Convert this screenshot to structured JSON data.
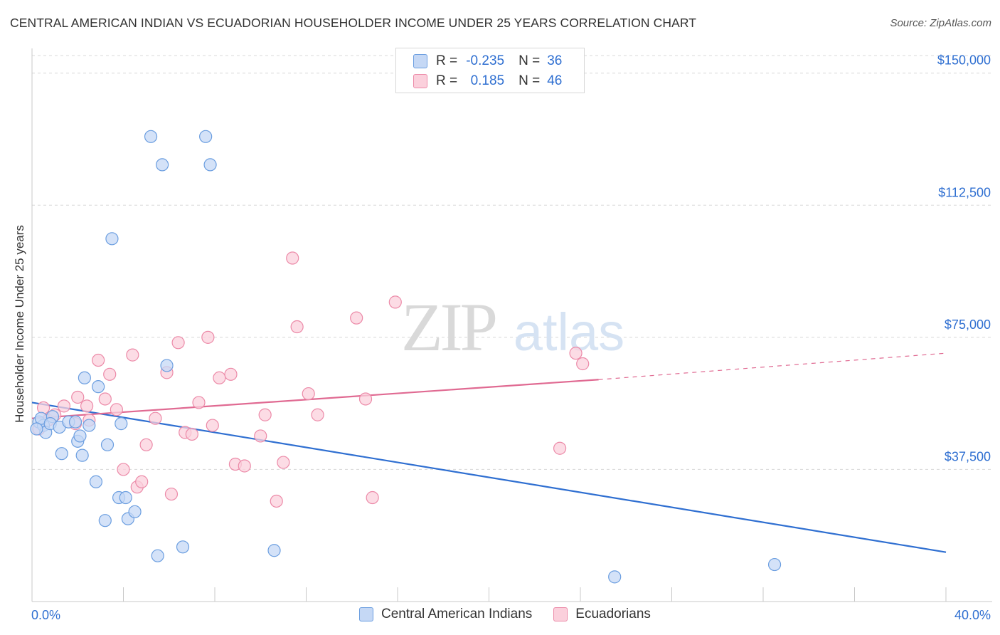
{
  "title": "CENTRAL AMERICAN INDIAN VS ECUADORIAN HOUSEHOLDER INCOME UNDER 25 YEARS CORRELATION CHART",
  "source": "Source: ZipAtlas.com",
  "watermark": {
    "zip": "ZIP",
    "atlas": "atlas"
  },
  "legend_top": {
    "rows": [
      {
        "r_label": "R =",
        "r_value": "-0.235",
        "n_label": "N =",
        "n_value": "36"
      },
      {
        "r_label": "R =",
        "r_value": "0.185",
        "n_label": "N =",
        "n_value": "46"
      }
    ]
  },
  "legend_bottom": [
    "Central American Indians",
    "Ecuadorians"
  ],
  "colors": {
    "blue_fill": "#c5d8f5",
    "blue_stroke": "#6b9ee0",
    "blue_line": "#2f6fd1",
    "pink_fill": "#fbd0dc",
    "pink_stroke": "#ec8aa8",
    "pink_line": "#e06a92",
    "grid": "#d8d8d8",
    "tick_text": "#2f6fd1"
  },
  "chart_data": {
    "type": "scatter",
    "title": "CENTRAL AMERICAN INDIAN VS ECUADORIAN HOUSEHOLDER INCOME UNDER 25 YEARS CORRELATION CHART",
    "xlabel": "",
    "ylabel": "Householder Income Under 25 years",
    "xlim": [
      0,
      40
    ],
    "ylim": [
      0,
      155000
    ],
    "x_tick_labels": [
      "0.0%",
      "40.0%"
    ],
    "y_ticks": [
      37500,
      75000,
      112500,
      150000
    ],
    "y_tick_labels": [
      "$37,500",
      "$75,000",
      "$112,500",
      "$150,000"
    ],
    "grid": true,
    "series": [
      {
        "name": "Central American Indians",
        "points": [
          [
            0.3,
            51000
          ],
          [
            0.5,
            50000
          ],
          [
            0.4,
            52000
          ],
          [
            0.6,
            48000
          ],
          [
            0.9,
            52500
          ],
          [
            0.8,
            50500
          ],
          [
            1.2,
            49500
          ],
          [
            1.6,
            51000
          ],
          [
            1.9,
            51000
          ],
          [
            2.5,
            50000
          ],
          [
            2.0,
            45500
          ],
          [
            2.2,
            41500
          ],
          [
            1.3,
            42000
          ],
          [
            2.1,
            47000
          ],
          [
            2.3,
            63500
          ],
          [
            2.9,
            61000
          ],
          [
            3.3,
            44500
          ],
          [
            2.8,
            34000
          ],
          [
            3.2,
            23000
          ],
          [
            3.8,
            29500
          ],
          [
            4.1,
            29500
          ],
          [
            4.2,
            23500
          ],
          [
            4.5,
            25500
          ],
          [
            3.9,
            50500
          ],
          [
            3.5,
            103000
          ],
          [
            5.2,
            132000
          ],
          [
            5.7,
            124000
          ],
          [
            7.6,
            132000
          ],
          [
            7.8,
            124000
          ],
          [
            5.9,
            67000
          ],
          [
            5.5,
            13000
          ],
          [
            6.6,
            15500
          ],
          [
            10.6,
            14500
          ],
          [
            25.5,
            7000
          ],
          [
            32.5,
            10500
          ],
          [
            0.2,
            49000
          ]
        ],
        "trend": {
          "x": [
            0,
            40
          ],
          "y": [
            56500,
            14000
          ]
        }
      },
      {
        "name": "Ecuadorians",
        "points": [
          [
            0.3,
            49000
          ],
          [
            0.5,
            55000
          ],
          [
            0.7,
            51500
          ],
          [
            1.0,
            53000
          ],
          [
            1.4,
            55500
          ],
          [
            1.9,
            50500
          ],
          [
            2.0,
            58000
          ],
          [
            2.4,
            55500
          ],
          [
            2.5,
            51500
          ],
          [
            2.9,
            68500
          ],
          [
            3.2,
            57500
          ],
          [
            3.4,
            64500
          ],
          [
            3.7,
            54500
          ],
          [
            4.0,
            37500
          ],
          [
            4.4,
            70000
          ],
          [
            4.6,
            32500
          ],
          [
            4.8,
            34000
          ],
          [
            5.0,
            44500
          ],
          [
            5.4,
            52000
          ],
          [
            5.9,
            65000
          ],
          [
            6.1,
            30500
          ],
          [
            6.4,
            73500
          ],
          [
            6.7,
            48000
          ],
          [
            7.0,
            47500
          ],
          [
            7.3,
            56500
          ],
          [
            7.7,
            75000
          ],
          [
            7.9,
            50000
          ],
          [
            8.2,
            63500
          ],
          [
            8.7,
            64500
          ],
          [
            8.9,
            39000
          ],
          [
            9.3,
            38500
          ],
          [
            10.0,
            47000
          ],
          [
            10.2,
            53000
          ],
          [
            10.7,
            28500
          ],
          [
            11.0,
            39500
          ],
          [
            11.4,
            97500
          ],
          [
            11.6,
            78000
          ],
          [
            12.1,
            59000
          ],
          [
            12.5,
            53000
          ],
          [
            14.2,
            80500
          ],
          [
            14.6,
            57500
          ],
          [
            14.9,
            29500
          ],
          [
            15.9,
            85000
          ],
          [
            23.1,
            43500
          ],
          [
            23.8,
            70500
          ],
          [
            24.1,
            67500
          ]
        ],
        "trend": {
          "x": [
            0,
            24.8
          ],
          "y": [
            52000,
            63000
          ],
          "dashed_to": [
            40,
            70500
          ]
        }
      }
    ]
  }
}
